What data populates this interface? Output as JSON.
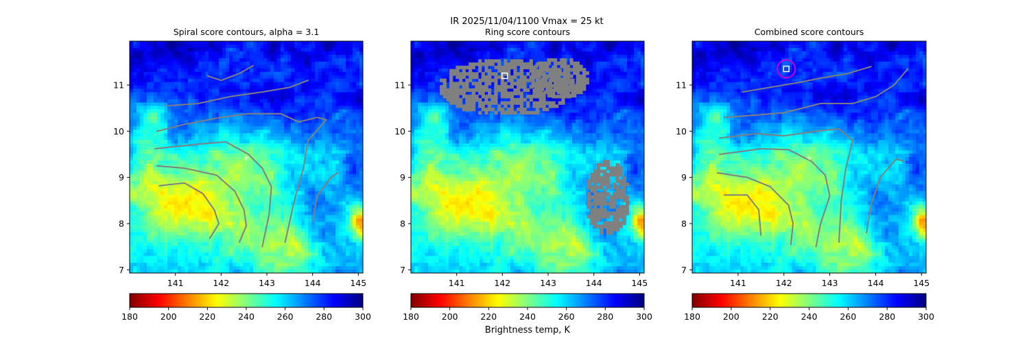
{
  "figure": {
    "suptitle": "IR  2025/11/04/1100    Vmax = 25 kt",
    "colorbar_label": "Brightness temp, K"
  },
  "colormap": {
    "name": "jet_r",
    "stops": [
      "#7f0000",
      "#ff0000",
      "#ff8000",
      "#ffff00",
      "#80ff80",
      "#00ffff",
      "#0080ff",
      "#0000ff",
      "#00007f"
    ]
  },
  "contour_color": "#808080",
  "chart_data": [
    {
      "type": "heatmap",
      "title": "Spiral score contours, alpha =  3.1",
      "xlim": [
        140.0,
        145.1
      ],
      "ylim": [
        6.93,
        11.95
      ],
      "xticks": [
        141,
        142,
        143,
        144,
        145
      ],
      "yticks": [
        7,
        8,
        9,
        10,
        11
      ],
      "colorbar": {
        "range": [
          180,
          300
        ],
        "ticks": [
          180,
          200,
          220,
          240,
          260,
          280,
          300
        ]
      },
      "center_marker": {
        "lon": 142.55,
        "lat": 9.43,
        "symbol": "+"
      },
      "spiral_contours": [
        [
          [
            140.6,
            9.25
          ],
          [
            141.2,
            9.2
          ],
          [
            141.9,
            9.05
          ],
          [
            142.3,
            8.7
          ],
          [
            142.5,
            8.3
          ],
          [
            142.55,
            7.95
          ],
          [
            142.4,
            7.6
          ]
        ],
        [
          [
            140.65,
            8.82
          ],
          [
            141.2,
            8.88
          ],
          [
            141.6,
            8.65
          ],
          [
            141.85,
            8.3
          ],
          [
            141.95,
            8.0
          ],
          [
            141.75,
            7.68
          ]
        ],
        [
          [
            140.55,
            9.62
          ],
          [
            141.5,
            9.72
          ],
          [
            142.1,
            9.77
          ],
          [
            142.6,
            9.5
          ],
          [
            142.9,
            9.2
          ],
          [
            143.1,
            8.8
          ],
          [
            143.05,
            8.2
          ],
          [
            142.9,
            7.5
          ]
        ],
        [
          [
            140.6,
            10.0
          ],
          [
            141.2,
            10.15
          ],
          [
            142.0,
            10.3
          ],
          [
            142.6,
            10.38
          ],
          [
            143.3,
            10.38
          ],
          [
            143.7,
            10.2
          ],
          [
            144.1,
            10.3
          ],
          [
            144.3,
            10.25
          ],
          [
            143.9,
            9.8
          ],
          [
            143.8,
            9.2
          ],
          [
            143.6,
            8.5
          ],
          [
            143.4,
            7.6
          ]
        ],
        [
          [
            140.8,
            10.55
          ],
          [
            141.5,
            10.6
          ],
          [
            142.2,
            10.75
          ],
          [
            142.9,
            10.85
          ],
          [
            143.5,
            10.95
          ],
          [
            143.9,
            11.1
          ]
        ],
        [
          [
            141.7,
            11.2
          ],
          [
            142.0,
            11.1
          ],
          [
            142.4,
            11.25
          ],
          [
            142.7,
            11.42
          ]
        ],
        [
          [
            144.0,
            8.05
          ],
          [
            144.1,
            8.6
          ],
          [
            144.4,
            9.0
          ],
          [
            144.55,
            9.1
          ]
        ]
      ]
    },
    {
      "type": "heatmap",
      "title": "Ring score contours",
      "xlim": [
        140.0,
        145.1
      ],
      "ylim": [
        6.93,
        11.95
      ],
      "xticks": [
        141,
        142,
        143,
        144,
        145
      ],
      "yticks": [
        7,
        8,
        9,
        10,
        11
      ],
      "colorbar": {
        "range": [
          180,
          300
        ],
        "ticks": [
          180,
          200,
          220,
          240,
          260,
          280,
          300
        ]
      },
      "square_marker": {
        "lon": 142.05,
        "lat": 11.2
      },
      "ring_regions": [
        {
          "center_lon": 142.1,
          "center_lat": 10.95,
          "radius_lon": 1.5,
          "radius_lat": 0.62
        },
        {
          "center_lon": 143.25,
          "center_lat": 11.15,
          "radius_lon": 0.65,
          "radius_lat": 0.45
        },
        {
          "center_lon": 144.3,
          "center_lat": 8.55,
          "radius_lon": 0.48,
          "radius_lat": 0.82
        }
      ]
    },
    {
      "type": "heatmap",
      "title": "Combined score contours",
      "xlim": [
        140.0,
        145.1
      ],
      "ylim": [
        6.93,
        11.95
      ],
      "xticks": [
        141,
        142,
        143,
        144,
        145
      ],
      "yticks": [
        7,
        8,
        9,
        10,
        11
      ],
      "colorbar": {
        "range": [
          180,
          300
        ],
        "ticks": [
          180,
          200,
          220,
          240,
          260,
          280,
          300
        ]
      },
      "center_marker": {
        "lon": 142.55,
        "lat": 9.43,
        "symbol": "+"
      },
      "square_marker": {
        "lon": 142.05,
        "lat": 11.35
      },
      "circle_marker": {
        "lon": 142.05,
        "lat": 11.35,
        "color": "#cc00cc"
      },
      "spiral_contours": [
        [
          [
            140.55,
            9.1
          ],
          [
            141.2,
            9.0
          ],
          [
            141.7,
            8.8
          ],
          [
            142.1,
            8.4
          ],
          [
            142.2,
            8.0
          ],
          [
            142.15,
            7.55
          ]
        ],
        [
          [
            140.7,
            8.62
          ],
          [
            141.2,
            8.62
          ],
          [
            141.45,
            8.3
          ],
          [
            141.5,
            7.75
          ]
        ],
        [
          [
            140.6,
            9.5
          ],
          [
            141.5,
            9.62
          ],
          [
            142.1,
            9.6
          ],
          [
            142.6,
            9.35
          ],
          [
            142.9,
            9.05
          ],
          [
            143.0,
            8.6
          ],
          [
            142.8,
            8.0
          ],
          [
            142.7,
            7.5
          ]
        ],
        [
          [
            140.6,
            9.85
          ],
          [
            141.4,
            9.95
          ],
          [
            142.0,
            9.9
          ],
          [
            142.7,
            10.0
          ],
          [
            143.2,
            10.05
          ],
          [
            143.5,
            9.8
          ],
          [
            143.35,
            9.2
          ],
          [
            143.25,
            8.5
          ],
          [
            143.2,
            7.6
          ]
        ],
        [
          [
            140.7,
            10.3
          ],
          [
            141.4,
            10.35
          ],
          [
            142.0,
            10.4
          ],
          [
            142.8,
            10.6
          ],
          [
            143.5,
            10.6
          ],
          [
            144.0,
            10.75
          ],
          [
            144.4,
            11.0
          ],
          [
            144.7,
            11.35
          ]
        ],
        [
          [
            141.1,
            10.85
          ],
          [
            141.7,
            10.95
          ],
          [
            142.3,
            11.05
          ],
          [
            142.8,
            11.15
          ],
          [
            143.4,
            11.25
          ],
          [
            143.9,
            11.4
          ]
        ],
        [
          [
            143.8,
            7.8
          ],
          [
            143.9,
            8.4
          ],
          [
            144.1,
            9.0
          ],
          [
            144.45,
            9.4
          ],
          [
            144.6,
            9.35
          ]
        ]
      ]
    }
  ]
}
